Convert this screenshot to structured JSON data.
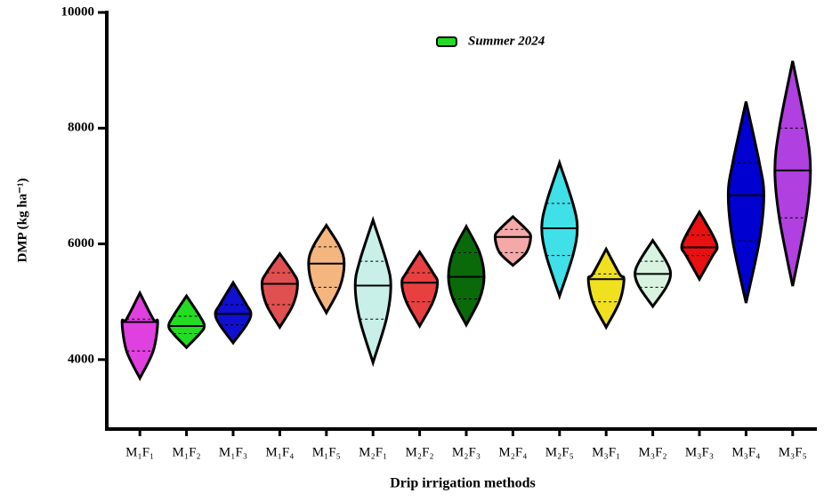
{
  "chart_data": {
    "type": "violin",
    "y_label": "DMP (kg ha⁻¹)",
    "x_label": "Drip irrigation methods",
    "legend_label": "Summer 2024",
    "legend_color": "#22dd22",
    "categories": [
      "M₁F₁",
      "M₁F₂",
      "M₁F₃",
      "M₁F₄",
      "M₁F₅",
      "M₂F₁",
      "M₂F₂",
      "M₂F₃",
      "M₂F₄",
      "M₂F₅",
      "M₃F₁",
      "M₃F₂",
      "M₃F₃",
      "M₃F₄",
      "M₃F₅"
    ],
    "min": [
      3680,
      4210,
      4290,
      4560,
      4810,
      3950,
      4580,
      4600,
      5630,
      5100,
      4560,
      4920,
      5390,
      4980,
      5270
    ],
    "q1": [
      4150,
      4450,
      4600,
      4950,
      5250,
      4700,
      5000,
      5050,
      5850,
      5800,
      5000,
      5250,
      5800,
      6050,
      6450
    ],
    "median": [
      4650,
      4580,
      4790,
      5310,
      5660,
      5280,
      5330,
      5430,
      6120,
      6270,
      5390,
      5480,
      5940,
      6840,
      7270
    ],
    "q3": [
      4700,
      4750,
      4950,
      5500,
      5950,
      5700,
      5500,
      5850,
      6250,
      6700,
      5480,
      5700,
      6150,
      7400,
      8000
    ],
    "max": [
      5150,
      5100,
      5330,
      5830,
      6320,
      6410,
      5860,
      6300,
      6470,
      7400,
      5910,
      6060,
      6550,
      8460,
      9160
    ],
    "colors": [
      "#e040e0",
      "#22dd22",
      "#1010d0",
      "#e05050",
      "#f5b57f",
      "#c8f0e8",
      "#e84040",
      "#0a6a0a",
      "#f4a8a8",
      "#40e0e8",
      "#f0e020",
      "#d8f4e0",
      "#e81010",
      "#0000d0",
      "#b040e0"
    ],
    "ylim": [
      2800,
      10000
    ],
    "yticks": [
      4000,
      6000,
      8000,
      10000
    ]
  }
}
